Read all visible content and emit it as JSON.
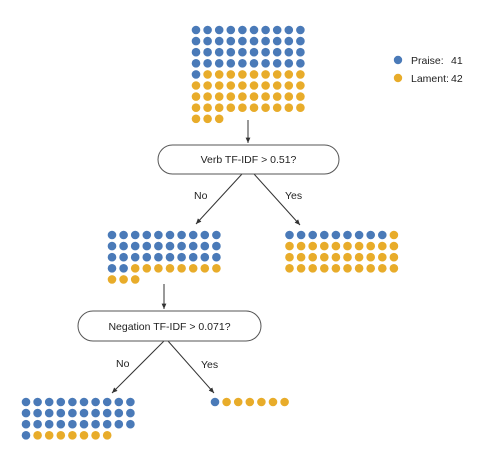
{
  "colors": {
    "praise": "#4a7ab8",
    "lament": "#e8ac2a",
    "line": "#333333",
    "node_stroke": "#555555"
  },
  "legend": [
    {
      "key": "praise",
      "label": "Praise:",
      "count": "41"
    },
    {
      "key": "lament",
      "label": "Lament:",
      "count": "42"
    }
  ],
  "nodes": {
    "root": {
      "praise": 41,
      "lament": 42
    },
    "left1": {
      "praise": 32,
      "lament": 11
    },
    "right1": {
      "praise": 9,
      "lament": 31
    },
    "left2": {
      "praise": 31,
      "lament": 7
    },
    "right2": {
      "praise": 1,
      "lament": 6
    }
  },
  "splits": {
    "split1": {
      "question": "Verb TF-IDF > 0.51?",
      "no_label": "No",
      "yes_label": "Yes"
    },
    "split2": {
      "question": "Negation TF-IDF > 0.071?",
      "no_label": "No",
      "yes_label": "Yes"
    }
  }
}
